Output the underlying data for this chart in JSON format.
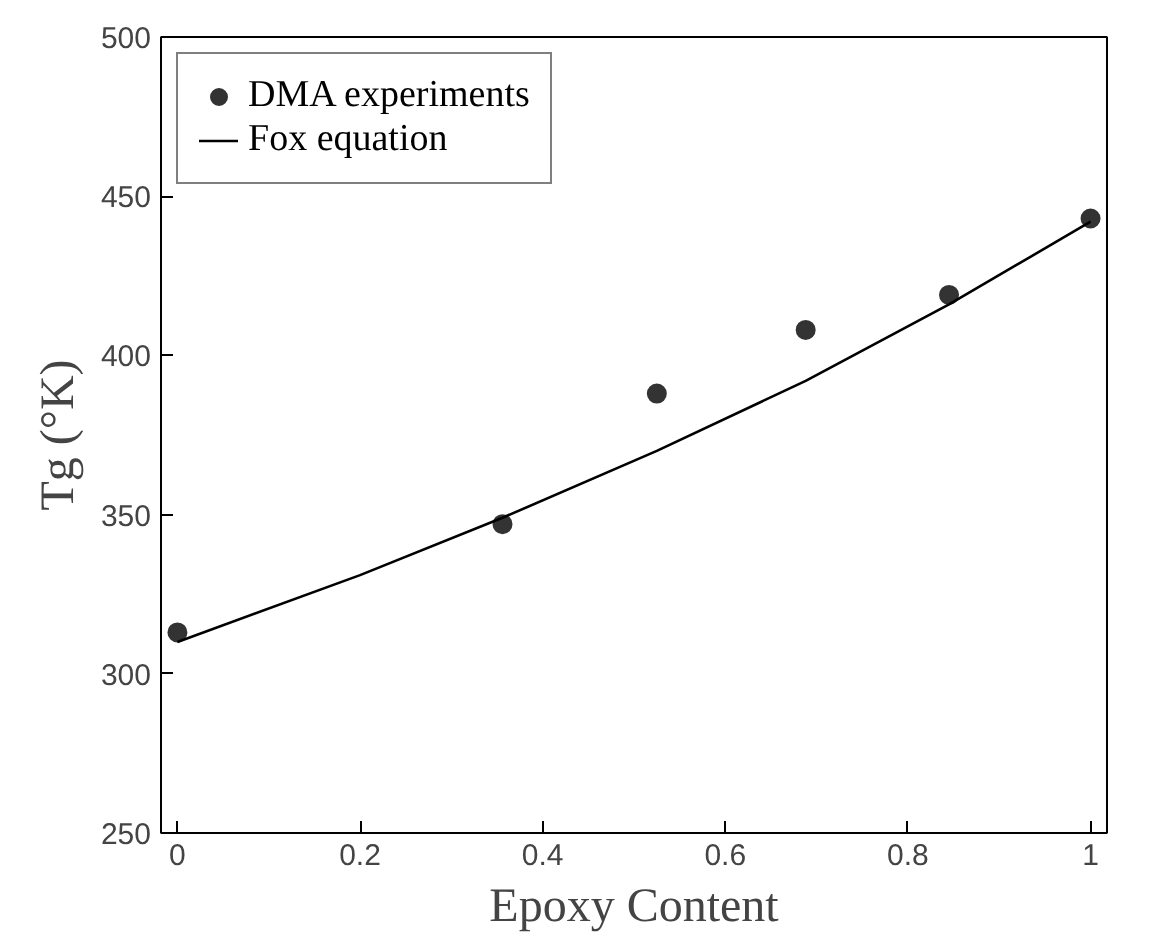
{
  "chart_data": {
    "type": "scatter",
    "xlabel": "Epoxy Content",
    "ylabel": "Tg (°K)",
    "xlim": [
      -0.018,
      1.018
    ],
    "ylim": [
      250,
      500
    ],
    "xticks": [
      0,
      0.2,
      0.4,
      0.6,
      0.8,
      1
    ],
    "yticks": [
      250,
      300,
      350,
      400,
      450,
      500
    ],
    "legend": "top left",
    "grid": false,
    "series": [
      {
        "name": "DMA experiments",
        "marker": "circle",
        "color": "#333333",
        "x": [
          0,
          0.356,
          0.525,
          0.688,
          0.845,
          1
        ],
        "values": [
          313,
          347,
          388,
          408,
          419,
          443
        ]
      },
      {
        "name": "Fox equation",
        "type": "line",
        "color": "#000000",
        "x": [
          0,
          0.2,
          0.356,
          0.525,
          0.688,
          0.845,
          1
        ],
        "values": [
          310,
          331,
          349,
          370,
          392,
          416,
          442
        ]
      }
    ]
  }
}
